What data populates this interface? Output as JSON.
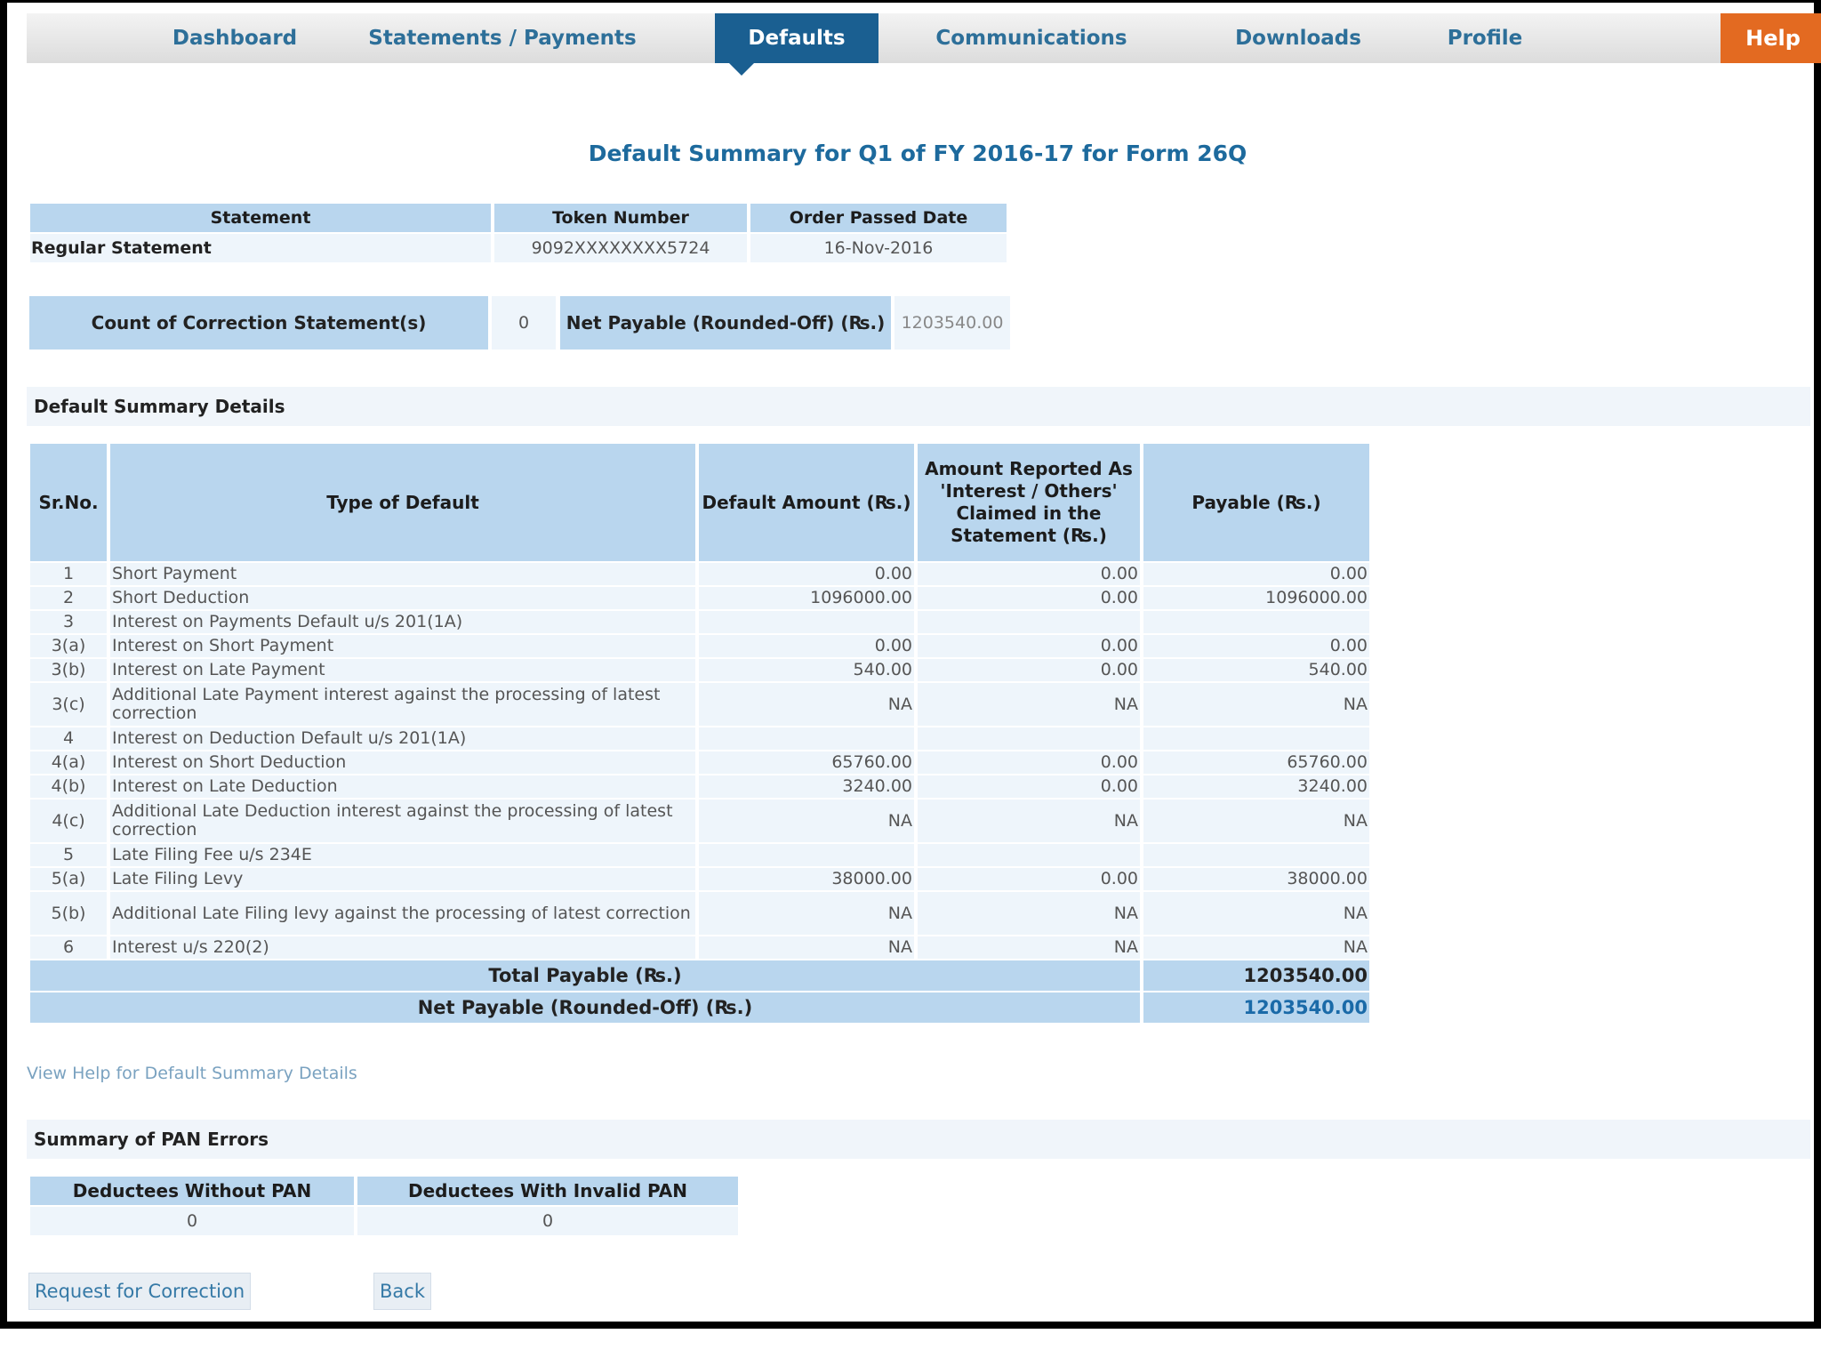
{
  "nav": {
    "items": [
      "Dashboard",
      "Statements / Payments",
      "Defaults",
      "Communications",
      "Downloads",
      "Profile"
    ],
    "active_index": 2,
    "help_label": "Help"
  },
  "page_title": "Default Summary for Q1 of FY 2016-17 for Form 26Q",
  "statement_table": {
    "headers": [
      "Statement",
      "Token Number",
      "Order Passed Date"
    ],
    "row": [
      "Regular Statement",
      "9092XXXXXXXX5724",
      "16-Nov-2016"
    ]
  },
  "correction": {
    "count_label": "Count of Correction Statement(s)",
    "count_value": "0",
    "net_payable_label": "Net Payable (Rounded-Off) (₨.)",
    "net_payable_value": "1203540.00"
  },
  "default_summary": {
    "section_title": "Default Summary Details",
    "headers": [
      "Sr.No.",
      "Type of Default",
      "Default Amount (₨.)",
      "Amount Reported As 'Interest / Others' Claimed in the Statement (₨.)",
      "Payable (₨.)"
    ],
    "rows": [
      {
        "sr": "1",
        "type": "Short Payment",
        "default": "0.00",
        "reported": "0.00",
        "payable": "0.00"
      },
      {
        "sr": "2",
        "type": "Short Deduction",
        "default": "1096000.00",
        "reported": "0.00",
        "payable": "1096000.00"
      },
      {
        "sr": "3",
        "type": "Interest on Payments Default u/s 201(1A)",
        "default": "",
        "reported": "",
        "payable": ""
      },
      {
        "sr": "3(a)",
        "type": "Interest on Short Payment",
        "default": "0.00",
        "reported": "0.00",
        "payable": "0.00"
      },
      {
        "sr": "3(b)",
        "type": "Interest on Late Payment",
        "default": "540.00",
        "reported": "0.00",
        "payable": "540.00"
      },
      {
        "sr": "3(c)",
        "type": "Additional Late Payment interest against the processing of latest correction",
        "default": "NA",
        "reported": "NA",
        "payable": "NA"
      },
      {
        "sr": "4",
        "type": "Interest on Deduction Default u/s 201(1A)",
        "default": "",
        "reported": "",
        "payable": ""
      },
      {
        "sr": "4(a)",
        "type": "Interest on Short Deduction",
        "default": "65760.00",
        "reported": "0.00",
        "payable": "65760.00"
      },
      {
        "sr": "4(b)",
        "type": "Interest on Late Deduction",
        "default": "3240.00",
        "reported": "0.00",
        "payable": "3240.00"
      },
      {
        "sr": "4(c)",
        "type": "Additional Late Deduction interest against the processing of latest correction",
        "default": "NA",
        "reported": "NA",
        "payable": "NA"
      },
      {
        "sr": "5",
        "type": "Late Filing Fee u/s 234E",
        "default": "",
        "reported": "",
        "payable": ""
      },
      {
        "sr": "5(a)",
        "type": "Late Filing Levy",
        "default": "38000.00",
        "reported": "0.00",
        "payable": "38000.00"
      },
      {
        "sr": "5(b)",
        "type": "Additional Late Filing levy against the processing of latest correction",
        "default": "NA",
        "reported": "NA",
        "payable": "NA"
      },
      {
        "sr": "6",
        "type": "Interest u/s 220(2)",
        "default": "NA",
        "reported": "NA",
        "payable": "NA"
      }
    ],
    "total_label": "Total Payable (₨.)",
    "total_value": "1203540.00",
    "net_label": "Net Payable (Rounded-Off) (₨.)",
    "net_value": "1203540.00"
  },
  "help_link": "View Help for Default Summary Details",
  "pan_errors": {
    "section_title": "Summary of PAN Errors",
    "headers": [
      "Deductees Without PAN",
      "Deductees With Invalid PAN"
    ],
    "values": [
      "0",
      "0"
    ]
  },
  "buttons": {
    "request_correction": "Request for Correction",
    "back": "Back"
  },
  "colors": {
    "nav_active": "#1a5f91",
    "help": "#e36a21",
    "header_cell": "#b9d6ee",
    "title": "#1d6a9d"
  }
}
